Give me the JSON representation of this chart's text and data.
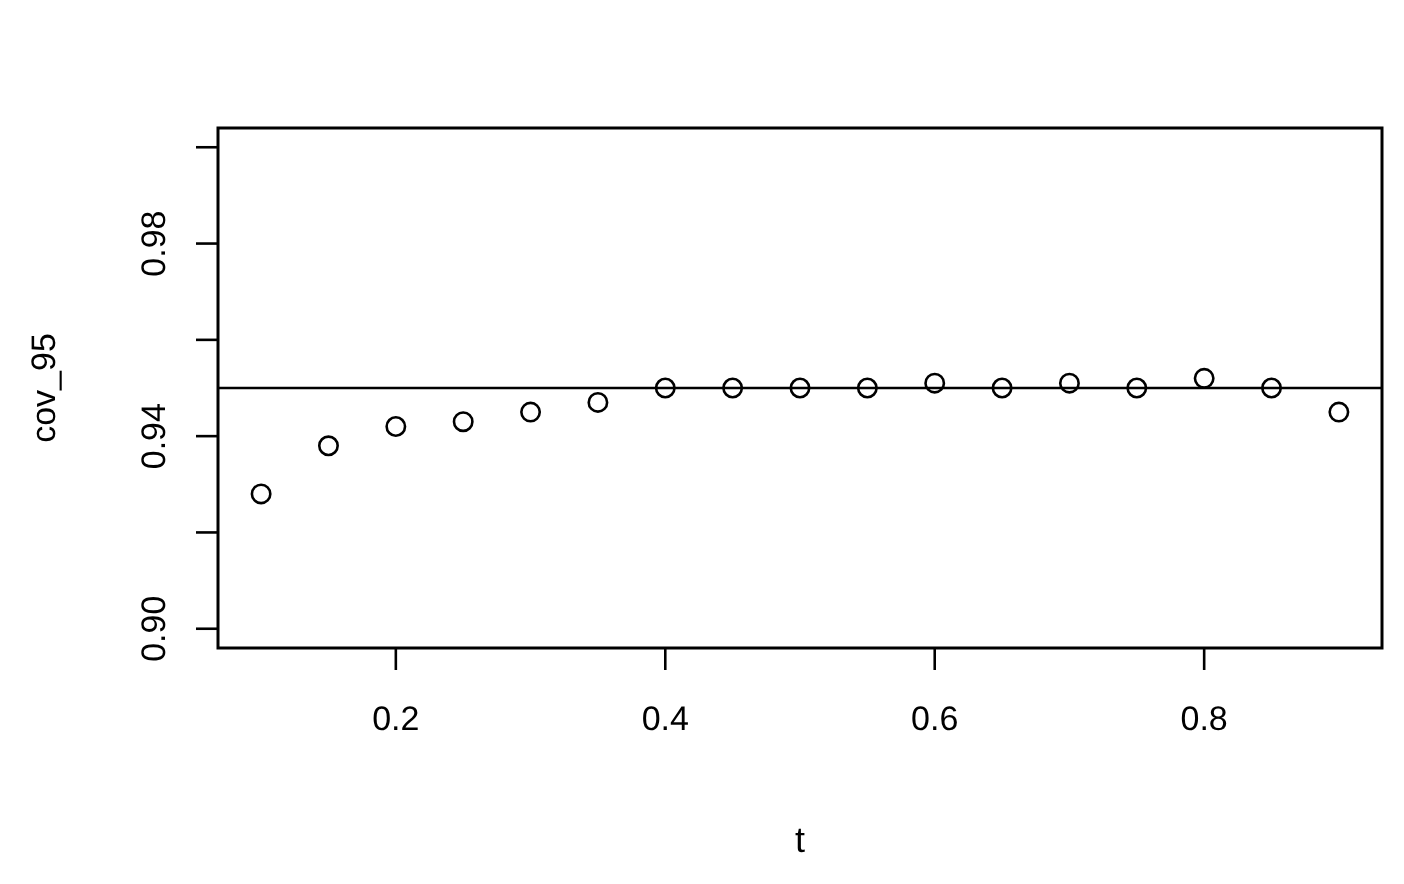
{
  "chart_data": {
    "type": "scatter",
    "xlabel": "t",
    "ylabel": "cov_95",
    "x": [
      0.1,
      0.15,
      0.2,
      0.25,
      0.3,
      0.35,
      0.4,
      0.45,
      0.5,
      0.55,
      0.6,
      0.65,
      0.7,
      0.75,
      0.8,
      0.85,
      0.9
    ],
    "values": [
      0.928,
      0.938,
      0.942,
      0.943,
      0.945,
      0.947,
      0.95,
      0.95,
      0.95,
      0.95,
      0.951,
      0.95,
      0.951,
      0.95,
      0.952,
      0.95,
      0.945
    ],
    "color": "#000000",
    "marker": "circle",
    "xlim": [
      0.068,
      0.932
    ],
    "xticks": [
      0.2,
      0.4,
      0.6,
      0.8
    ],
    "ylim": [
      0.896,
      1.004
    ],
    "yticks": [
      {
        "value": 0.9,
        "label": "0.90"
      },
      {
        "value": 0.92,
        "label": null
      },
      {
        "value": 0.94,
        "label": "0.94"
      },
      {
        "value": 0.96,
        "label": null
      },
      {
        "value": 0.98,
        "label": "0.98"
      },
      {
        "value": 1.0,
        "label": null
      }
    ],
    "ref_lines": [
      {
        "axis": "y",
        "value": 0.95,
        "color": "#000000"
      }
    ]
  }
}
